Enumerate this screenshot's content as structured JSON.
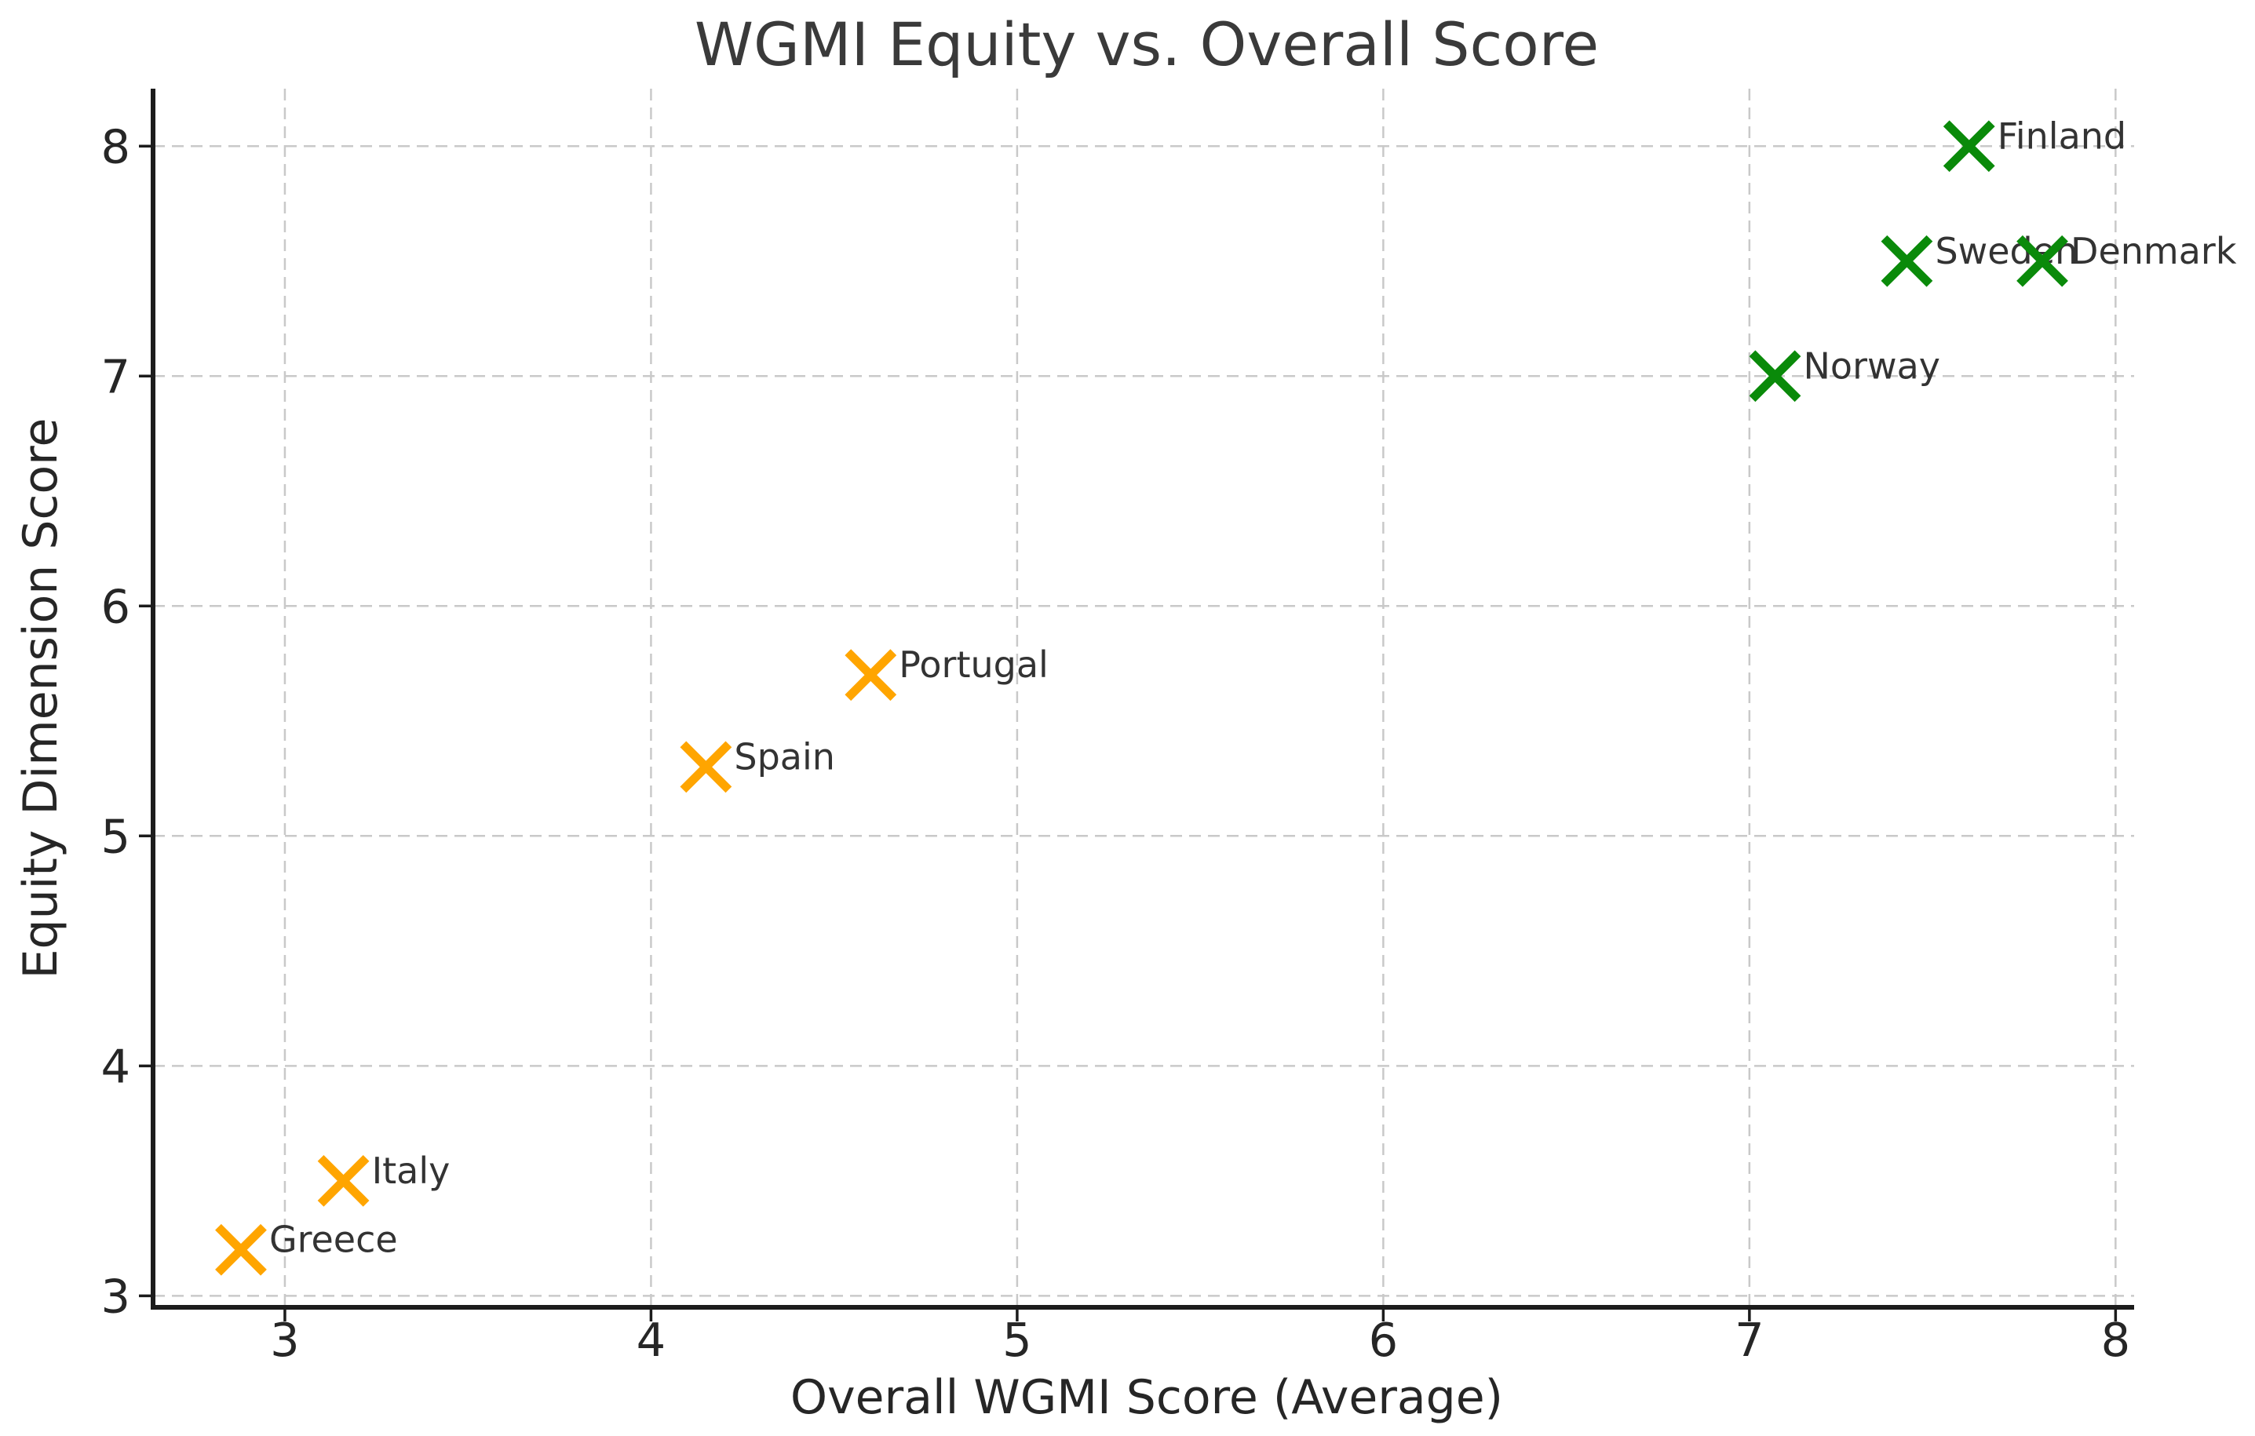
{
  "chart_data": {
    "type": "scatter",
    "title": "WGMI Equity vs. Overall Score",
    "xlabel": "Overall WGMI Score (Average)",
    "ylabel": "Equity Dimension Score",
    "xlim": [
      2.64,
      8.07
    ],
    "ylim": [
      2.95,
      8.25
    ],
    "xticks": [
      3,
      4,
      5,
      6,
      7,
      8
    ],
    "yticks": [
      3,
      4,
      5,
      6,
      7,
      8
    ],
    "grid": true,
    "grid_style": "dashed",
    "legend": false,
    "marker": "x",
    "series": [
      {
        "name": "green-group",
        "color": "#0a8a0a",
        "points": [
          {
            "label": "Finland",
            "x": 7.6,
            "y": 8.0
          },
          {
            "label": "Sweden",
            "x": 7.43,
            "y": 7.5
          },
          {
            "label": "Denmark",
            "x": 7.8,
            "y": 7.5
          },
          {
            "label": "Norway",
            "x": 7.07,
            "y": 7.0
          }
        ]
      },
      {
        "name": "orange-group",
        "color": "#ffa500",
        "points": [
          {
            "label": "Portugal",
            "x": 4.6,
            "y": 5.7
          },
          {
            "label": "Spain",
            "x": 4.15,
            "y": 5.3
          },
          {
            "label": "Italy",
            "x": 3.16,
            "y": 3.5
          },
          {
            "label": "Greece",
            "x": 2.88,
            "y": 3.2
          }
        ]
      }
    ]
  },
  "style": {
    "background": "#ffffff",
    "grid_color": "#c9c9c9",
    "axis_color": "#1c1c1c",
    "title_color": "#3a3a3a",
    "tick_label_color": "#262626",
    "point_label_color": "#333333"
  }
}
